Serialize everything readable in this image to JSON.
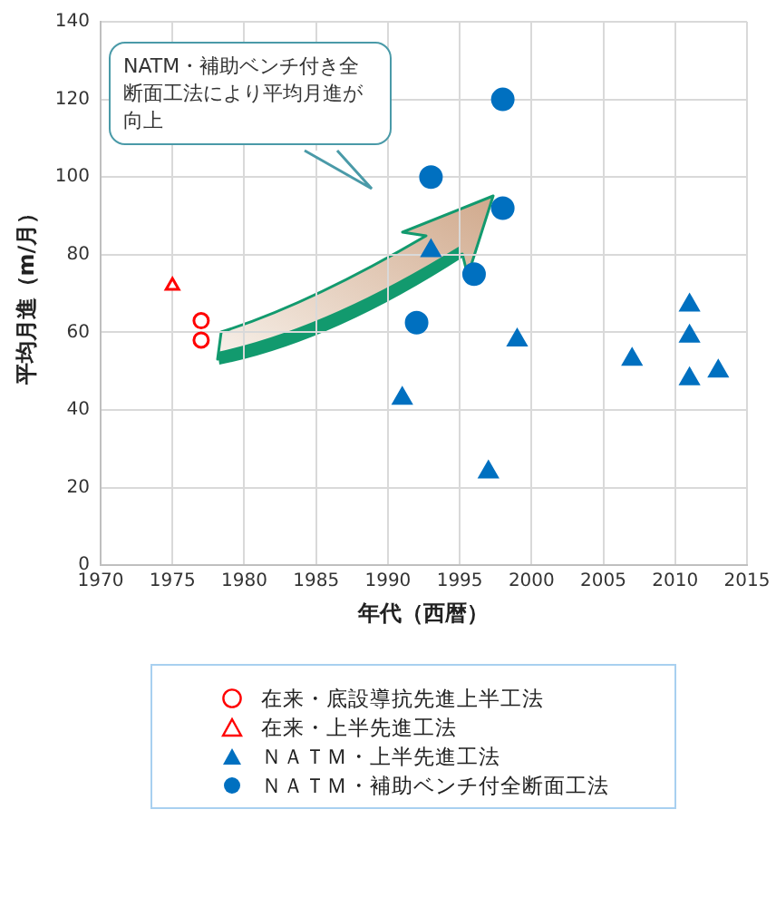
{
  "chart_data": {
    "type": "scatter",
    "xlabel": "年代（西暦）",
    "ylabel": "平均月進（m/月）",
    "xlim": [
      1970,
      2015
    ],
    "xticks": [
      1970,
      1975,
      1980,
      1985,
      1990,
      1995,
      2000,
      2005,
      2010,
      2015
    ],
    "ylim": [
      0,
      140
    ],
    "yticks": [
      0,
      20,
      40,
      60,
      80,
      100,
      120,
      140
    ],
    "grid": true,
    "legend": "bottom",
    "annotations": [
      "NATM・補助ベンチ付き全断面工法により平均月進が向上"
    ],
    "series": [
      {
        "name": "在来・底設導抗先進上半工法",
        "color": "#ff0000",
        "marker": "circle",
        "x": [
          1977,
          1977
        ],
        "values": [
          63,
          58
        ]
      },
      {
        "name": "在来・上半先進工法",
        "color": "#ff0000",
        "marker": "triangle",
        "x": [
          1975
        ],
        "values": [
          72
        ]
      },
      {
        "name": "ＮＡＴＭ・上半先進工法",
        "color": "#0070c0",
        "marker": "triangle",
        "x": [
          1991,
          1993,
          1997,
          1999,
          2007,
          2011,
          2011,
          2011,
          2013
        ],
        "values": [
          43,
          81,
          24,
          58,
          53,
          67,
          59,
          48,
          50
        ]
      },
      {
        "name": "ＮＡＴＭ・補助ベンチ付全断面工法",
        "color": "#0070c0",
        "marker": "circle",
        "x": [
          1992,
          1993,
          1996,
          1998,
          1998
        ],
        "values": [
          62.5,
          100,
          75,
          120,
          92
        ]
      }
    ]
  }
}
